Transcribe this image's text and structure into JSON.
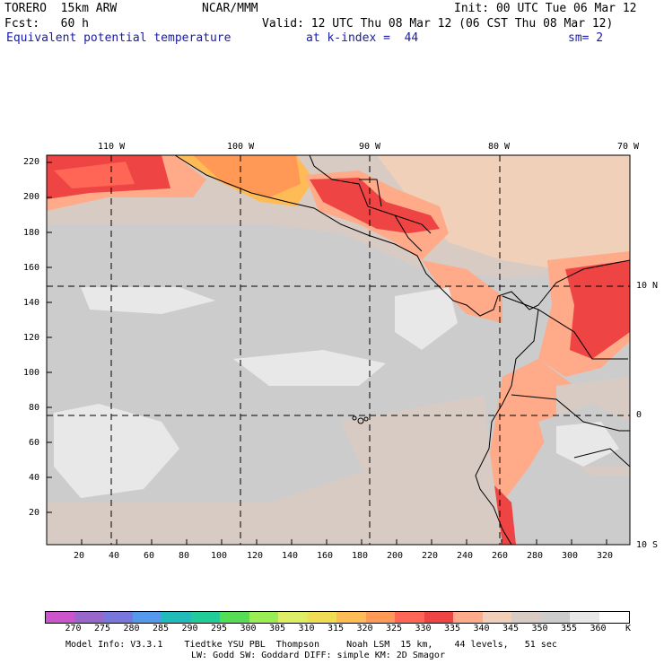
{
  "header": {
    "model": "TORERO  15km ARW",
    "org": "NCAR/MMM",
    "init": "Init: 00 UTC Tue 06 Mar 12",
    "fcst": "Fcst:   60 h",
    "valid": "Valid: 12 UTC Thu 08 Mar 12 (06 CST Thu 08 Mar 12)",
    "field": "Equivalent potential temperature",
    "level": "at k-index =  44",
    "smooth": "sm= 2"
  },
  "map": {
    "top_lon_labels": [
      "110 W",
      "100 W",
      "90 W",
      "80 W",
      "70 W"
    ],
    "right_lat_labels": [
      "10 N",
      "0",
      "10 S"
    ],
    "y_ticks": [
      "220",
      "200",
      "180",
      "160",
      "140",
      "120",
      "100",
      "80",
      "60",
      "40",
      "20"
    ],
    "x_ticks": [
      "20",
      "40",
      "60",
      "80",
      "100",
      "120",
      "140",
      "160",
      "180",
      "200",
      "220",
      "240",
      "260",
      "280",
      "300",
      "320"
    ]
  },
  "colorbar": {
    "labels": [
      "270",
      "275",
      "280",
      "285",
      "290",
      "295",
      "300",
      "305",
      "310",
      "315",
      "320",
      "325",
      "330",
      "335",
      "340",
      "345",
      "350",
      "355",
      "360"
    ],
    "unit": "K",
    "colors": [
      "#cc55cc",
      "#9966cc",
      "#7777dd",
      "#5599ee",
      "#22bbbb",
      "#22cc99",
      "#55dd55",
      "#99ee55",
      "#ddee66",
      "#eedd55",
      "#ffbb55",
      "#ff9955",
      "#ff6655",
      "#ee4444",
      "#ffaa88",
      "#f0d0b8",
      "#d8cbc4",
      "#cccccc",
      "#e8e8e8",
      "#ffffff"
    ]
  },
  "footer": {
    "line1": "Model Info: V3.3.1    Tiedtke YSU PBL  Thompson     Noah LSM  15 km,    44 levels,   51 sec",
    "line2": "LW: Godd SW: Goddard DIFF: simple KM: 2D Smagor"
  }
}
